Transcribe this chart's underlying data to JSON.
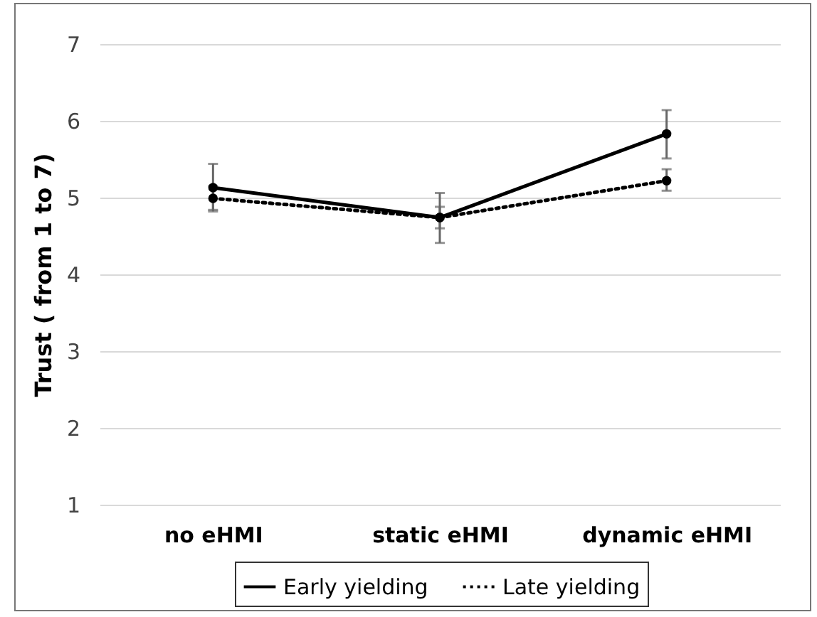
{
  "chart_data": {
    "type": "line",
    "ylabel": "Trust ( from 1 to 7)",
    "categories": [
      "no eHMI",
      "static eHMI",
      "dynamic eHMI"
    ],
    "series": [
      {
        "name": "Early yielding",
        "color": "#000000",
        "line_style": "solid",
        "values": [
          5.13,
          4.74,
          5.83
        ],
        "errors": [
          [
            4.82,
            5.44
          ],
          [
            4.41,
            5.06
          ],
          [
            5.51,
            6.14
          ]
        ]
      },
      {
        "name": "Late yielding",
        "color": "#000000",
        "line_style": "dotted",
        "values": [
          4.99,
          4.74,
          5.22
        ],
        "errors": [
          [
            4.84,
            5.15
          ],
          [
            4.6,
            4.88
          ],
          [
            5.09,
            5.37
          ]
        ]
      }
    ],
    "ylim": [
      1,
      7
    ],
    "yticks": [
      1,
      2,
      3,
      4,
      5,
      6,
      7
    ],
    "grid": "y",
    "legend": "bottom",
    "marker": "circle"
  }
}
